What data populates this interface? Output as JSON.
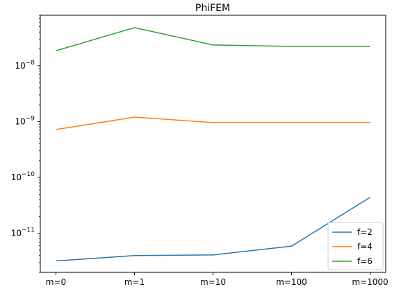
{
  "chart_data": {
    "type": "line",
    "title": "PhiFEM",
    "xlabel": "",
    "ylabel": "",
    "yscale": "log",
    "categories": [
      "m=0",
      "m=1",
      "m=10",
      "m=100",
      "m=1000"
    ],
    "ylim": [
      2e-12,
      8e-08
    ],
    "yticks": [
      {
        "value": 1e-11,
        "base": "10",
        "exp": "−11"
      },
      {
        "value": 1e-10,
        "base": "10",
        "exp": "−10"
      },
      {
        "value": 1e-09,
        "base": "10",
        "exp": "−9"
      },
      {
        "value": 1e-08,
        "base": "10",
        "exp": "−8"
      }
    ],
    "grid": false,
    "legend": "bottom-right",
    "series": [
      {
        "name": "f=2",
        "color": "#1f77b4",
        "values": [
          3.2e-12,
          4e-12,
          4.1e-12,
          5.9e-12,
          4.4e-11
        ]
      },
      {
        "name": "f=4",
        "color": "#ff7f0e",
        "values": [
          7.2e-10,
          1.2e-09,
          9.6e-10,
          9.6e-10,
          9.6e-10
        ]
      },
      {
        "name": "f=6",
        "color": "#2ca02c",
        "values": [
          1.85e-08,
          4.8e-08,
          2.35e-08,
          2.22e-08,
          2.22e-08
        ]
      }
    ]
  }
}
